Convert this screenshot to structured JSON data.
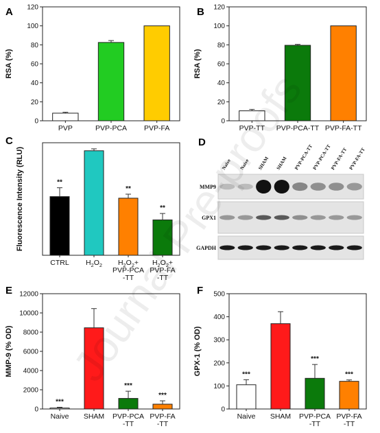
{
  "watermark": "Journal Pre-proofs",
  "colors": {
    "white": "#ffffff",
    "green": "#22cc22",
    "yellow": "#ffcc00",
    "darkgreen": "#0b7a0b",
    "orange": "#ff8000",
    "black": "#000000",
    "teal": "#20c8c0",
    "red": "#ff1a1a"
  },
  "chart_data": [
    {
      "panel": "A",
      "type": "bar",
      "categories": [
        "PVP",
        "PVP-PCA",
        "PVP-FA"
      ],
      "values": [
        8,
        82.5,
        100
      ],
      "errors": [
        1,
        2,
        0
      ],
      "colors": [
        "#ffffff",
        "#22cc22",
        "#ffcc00"
      ],
      "ylabel": "RSA (%)",
      "ylim": [
        0,
        120
      ],
      "yticks": [
        0,
        20,
        40,
        60,
        80,
        100,
        120
      ],
      "sig": [
        "",
        "",
        ""
      ]
    },
    {
      "panel": "B",
      "type": "bar",
      "categories": [
        "PVP-TT",
        "PVP-PCA-TT",
        "PVP-FA-TT"
      ],
      "values": [
        10.5,
        79.5,
        100
      ],
      "errors": [
        1.5,
        1,
        0
      ],
      "colors": [
        "#ffffff",
        "#0b7a0b",
        "#ff8000"
      ],
      "ylabel": "RSA (%)",
      "ylim": [
        0,
        120
      ],
      "yticks": [
        0,
        20,
        40,
        60,
        80,
        100,
        120
      ],
      "sig": [
        "",
        "",
        ""
      ]
    },
    {
      "panel": "C",
      "type": "bar",
      "categories": [
        [
          "CTRL"
        ],
        [
          "H2O2"
        ],
        [
          "H2O2+",
          "PVP-PCA",
          "-TT"
        ],
        [
          "H2O2+",
          "PVP-FA",
          "-TT"
        ]
      ],
      "values": [
        365,
        650,
        355,
        220
      ],
      "errors": [
        55,
        12,
        25,
        40
      ],
      "colors": [
        "#000000",
        "#20c8c0",
        "#ff8000",
        "#0b7a0b"
      ],
      "ylabel": "Fluorescence Intensity (RLU)",
      "ylim": [
        0,
        700
      ],
      "yticks": [],
      "sig": [
        "**",
        "",
        "**",
        "**"
      ]
    },
    {
      "panel": "E",
      "type": "bar",
      "categories": [
        [
          "Naive"
        ],
        [
          "SHAM"
        ],
        [
          "PVP-PCA",
          "-TT"
        ],
        [
          "PVP-FA",
          "-TT"
        ]
      ],
      "values": [
        100,
        8450,
        1100,
        500
      ],
      "errors": [
        80,
        2000,
        750,
        350
      ],
      "colors": [
        "#ffffff",
        "#ff1a1a",
        "#0b7a0b",
        "#ff8000"
      ],
      "ylabel": "MMP-9 (% OD)",
      "ylim": [
        0,
        12000
      ],
      "yticks": [
        0,
        2000,
        4000,
        6000,
        8000,
        10000,
        12000
      ],
      "sig": [
        "***",
        "",
        "***",
        "***"
      ]
    },
    {
      "panel": "F",
      "type": "bar",
      "categories": [
        [
          "Naive"
        ],
        [
          "SHAM"
        ],
        [
          "PVP-PCA",
          "-TT"
        ],
        [
          "PVP-FA",
          "-TT"
        ]
      ],
      "values": [
        105,
        370,
        133,
        120
      ],
      "errors": [
        22,
        52,
        60,
        6
      ],
      "colors": [
        "#ffffff",
        "#ff1a1a",
        "#0b7a0b",
        "#ff8000"
      ],
      "ylabel": "GPX-1 (% OD)",
      "ylim": [
        0,
        500
      ],
      "yticks": [
        0,
        100,
        200,
        300,
        400,
        500
      ],
      "sig": [
        "***",
        "",
        "***",
        "***"
      ]
    }
  ],
  "blot": {
    "panel": "D",
    "lanes": [
      "Naive",
      "Naive",
      "SHAM",
      "SHAM",
      "PVP-PCA-TT",
      "PVP-PCA-TT",
      "PVP-FA-TT",
      "PVP-FA-TT"
    ],
    "rows": [
      {
        "label": "MMP9",
        "intensity": [
          0.05,
          0.05,
          1.0,
          1.0,
          0.35,
          0.3,
          0.3,
          0.25
        ]
      },
      {
        "label": "GPX1",
        "intensity": [
          0.25,
          0.25,
          0.6,
          0.6,
          0.3,
          0.25,
          0.25,
          0.25
        ]
      },
      {
        "label": "GAPDH",
        "intensity": [
          0.95,
          0.95,
          0.95,
          0.95,
          0.95,
          0.95,
          0.95,
          0.95
        ]
      }
    ]
  }
}
